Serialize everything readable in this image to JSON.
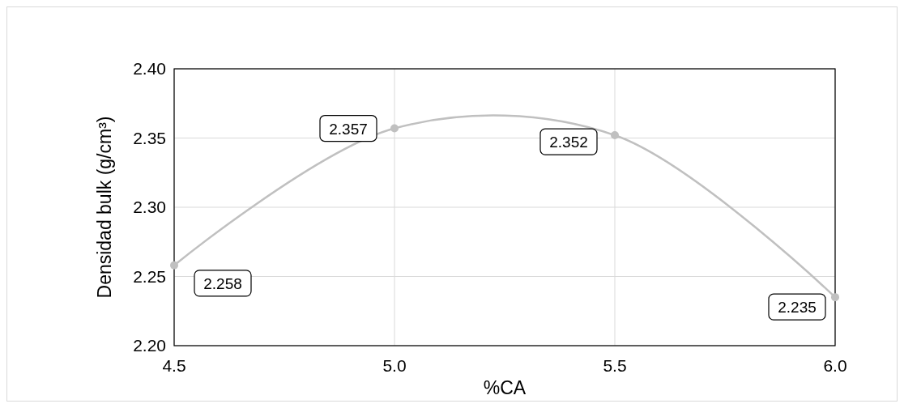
{
  "chart_data": {
    "type": "line",
    "xlabel": "%CA",
    "ylabel": "Densidad bulk (g/cm³)",
    "x": [
      4.5,
      5.0,
      5.5,
      6.0
    ],
    "series": [
      {
        "color": "#c0c0c0",
        "values": [
          2.258,
          2.357,
          2.352,
          2.235
        ]
      }
    ],
    "xlim": [
      4.5,
      6.0
    ],
    "xticks": [
      {
        "value": 4.5,
        "label": "4.5"
      },
      {
        "value": 5.0,
        "label": "5.0"
      },
      {
        "value": 5.5,
        "label": "5.5"
      },
      {
        "value": 6.0,
        "label": "6.0"
      }
    ],
    "ylim": [
      2.2,
      2.4
    ],
    "yticks": [
      {
        "value": 2.2,
        "label": "2.20"
      },
      {
        "value": 2.25,
        "label": "2.25"
      },
      {
        "value": 2.3,
        "label": "2.30"
      },
      {
        "value": 2.35,
        "label": "2.35"
      },
      {
        "value": 2.4,
        "label": "2.40"
      }
    ],
    "grid": true,
    "marker": "circle",
    "data_labels": true
  }
}
